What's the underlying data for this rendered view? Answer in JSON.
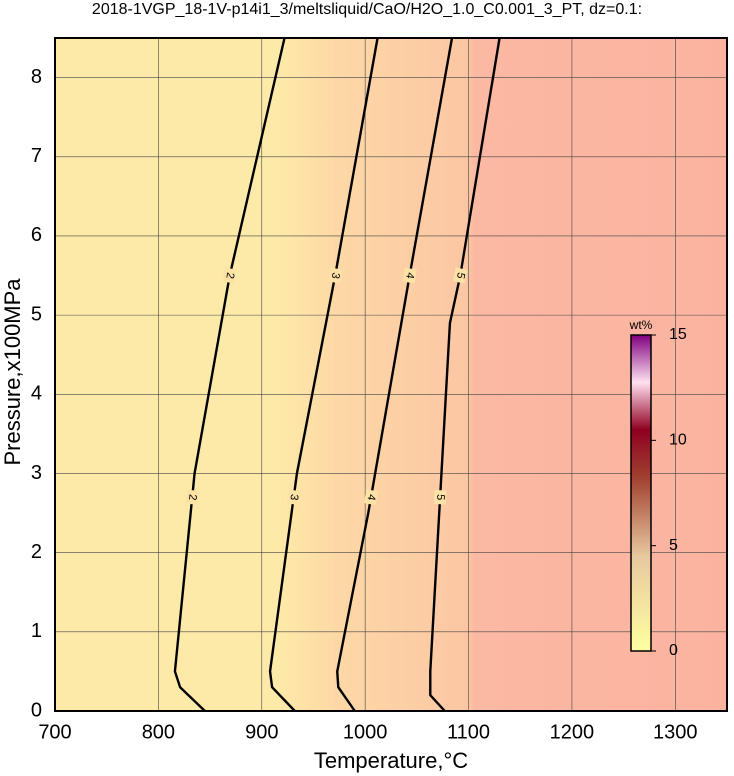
{
  "chart_data": {
    "type": "contour",
    "title": "2018-1VGP_18-1V-p14i1_3/meltsliquid/CaO/H2O_1.0_C0.001_3_PT, dz=0.1:",
    "x_label": "Temperature,°C",
    "y_label": "Pressure,x100MPa",
    "xlim": [
      700,
      1350
    ],
    "xticks": [
      700,
      800,
      900,
      1000,
      1100,
      1200,
      1300
    ],
    "ylim": [
      0,
      8.5
    ],
    "yticks": [
      0,
      1,
      2,
      3,
      4,
      5,
      6,
      7,
      8
    ],
    "grid": true,
    "series": [
      {
        "name": "2",
        "color": "#000000",
        "x": [
          845,
          821,
          816,
          835,
          869,
          922
        ],
        "values": [
          0,
          0.3,
          0.5,
          3,
          5.5,
          8.5
        ]
      },
      {
        "name": "3",
        "color": "#000000",
        "x": [
          932,
          910,
          908,
          934,
          971,
          1012
        ],
        "values": [
          0,
          0.3,
          0.5,
          3,
          5.5,
          8.5
        ]
      },
      {
        "name": "4",
        "color": "#000000",
        "x": [
          990,
          974,
          973,
          1003,
          1043,
          1084
        ],
        "values": [
          0,
          0.3,
          0.5,
          2.5,
          5.5,
          8.5
        ]
      },
      {
        "name": "5",
        "color": "#000000",
        "x": [
          1077,
          1063,
          1063,
          1082,
          1092,
          1130
        ],
        "values": [
          0,
          0.2,
          0.5,
          4.9,
          5.5,
          8.5
        ]
      }
    ],
    "colorbar": {
      "label": "wt%",
      "lim": [
        0,
        15
      ],
      "ticks": [
        0,
        5,
        10,
        15
      ]
    }
  }
}
